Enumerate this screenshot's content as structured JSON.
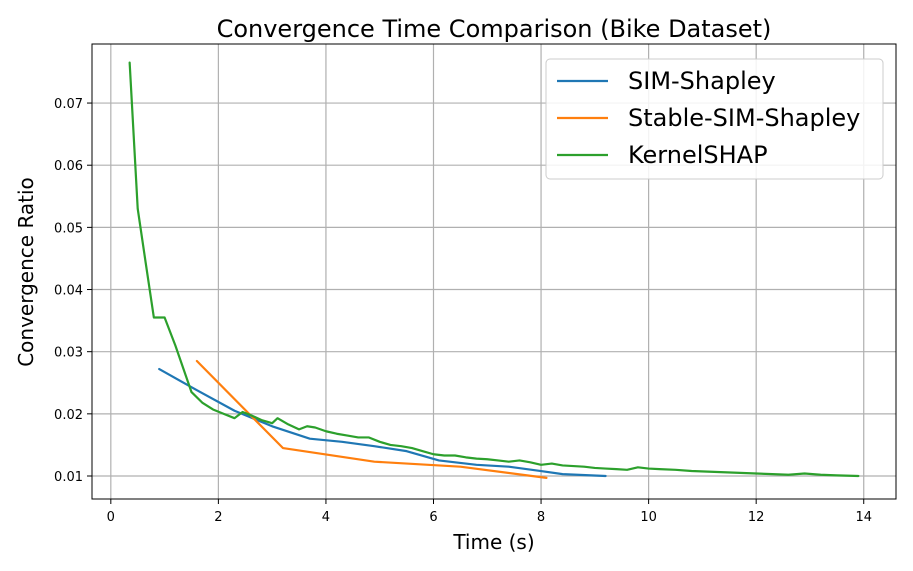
{
  "chart_data": {
    "type": "line",
    "title": "Convergence Time Comparison (Bike Dataset)",
    "xlabel": "Time (s)",
    "ylabel": "Convergence Ratio",
    "xlim": [
      -0.35,
      14.6
    ],
    "ylim": [
      0.0063,
      0.0795
    ],
    "xticks": [
      0,
      2,
      4,
      6,
      8,
      10,
      12,
      14
    ],
    "xtick_labels": [
      "0",
      "2",
      "4",
      "6",
      "8",
      "10",
      "12",
      "14"
    ],
    "yticks": [
      0.01,
      0.02,
      0.03,
      0.04,
      0.05,
      0.06,
      0.07
    ],
    "ytick_labels": [
      "0.01",
      "0.02",
      "0.03",
      "0.04",
      "0.05",
      "0.06",
      "0.07"
    ],
    "grid": true,
    "legend_position": "top-right",
    "series": [
      {
        "name": "SIM-Shapley",
        "color": "#1f77b4",
        "x": [
          0.9,
          1.6,
          2.3,
          3.0,
          3.7,
          4.3,
          4.9,
          5.5,
          6.1,
          6.8,
          7.4,
          8.0,
          8.4,
          9.2
        ],
        "y": [
          0.0272,
          0.0238,
          0.0205,
          0.018,
          0.016,
          0.0155,
          0.0148,
          0.014,
          0.0125,
          0.0118,
          0.0115,
          0.0108,
          0.0103,
          0.01
        ]
      },
      {
        "name": "Stable-SIM-Shapley",
        "color": "#ff7f0e",
        "x": [
          1.6,
          3.2,
          4.9,
          6.5,
          8.1
        ],
        "y": [
          0.0285,
          0.0145,
          0.0123,
          0.0115,
          0.0097
        ]
      },
      {
        "name": "KernelSHAP",
        "color": "#2ca02c",
        "x": [
          0.35,
          0.5,
          0.65,
          0.8,
          0.9,
          1.0,
          1.2,
          1.5,
          1.7,
          1.9,
          2.1,
          2.3,
          2.45,
          2.6,
          2.8,
          3.0,
          3.1,
          3.3,
          3.5,
          3.65,
          3.8,
          4.0,
          4.2,
          4.4,
          4.6,
          4.8,
          5.0,
          5.2,
          5.4,
          5.6,
          5.8,
          6.0,
          6.2,
          6.4,
          6.6,
          6.8,
          7.0,
          7.2,
          7.4,
          7.6,
          7.8,
          8.0,
          8.2,
          8.4,
          8.6,
          8.8,
          9.0,
          9.2,
          9.4,
          9.6,
          9.8,
          10.0,
          10.2,
          10.5,
          10.8,
          11.1,
          11.4,
          11.7,
          12.0,
          12.3,
          12.6,
          12.9,
          13.2,
          13.5,
          13.9
        ],
        "y": [
          0.0765,
          0.053,
          0.0442,
          0.0355,
          0.0355,
          0.0355,
          0.031,
          0.0235,
          0.0218,
          0.0207,
          0.02,
          0.0193,
          0.0203,
          0.0198,
          0.019,
          0.0185,
          0.0193,
          0.0183,
          0.0175,
          0.018,
          0.0178,
          0.0172,
          0.0168,
          0.0165,
          0.0162,
          0.0162,
          0.0155,
          0.015,
          0.0148,
          0.0145,
          0.014,
          0.0135,
          0.0133,
          0.0133,
          0.013,
          0.0128,
          0.0127,
          0.0125,
          0.0123,
          0.0125,
          0.0122,
          0.0118,
          0.012,
          0.0117,
          0.0116,
          0.0115,
          0.0113,
          0.0112,
          0.0111,
          0.011,
          0.0114,
          0.0112,
          0.0111,
          0.011,
          0.0108,
          0.0107,
          0.0106,
          0.0105,
          0.0104,
          0.0103,
          0.0102,
          0.0104,
          0.0102,
          0.0101,
          0.01
        ]
      }
    ]
  }
}
